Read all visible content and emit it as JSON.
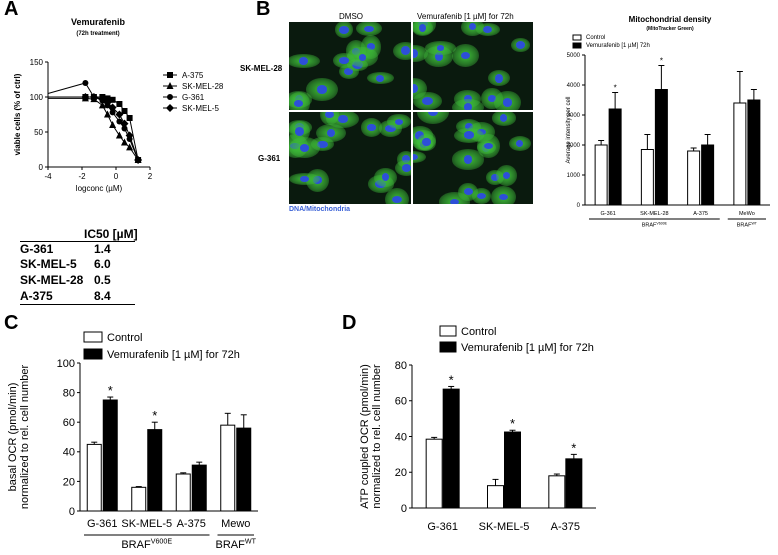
{
  "panels": {
    "a": "A",
    "b": "B",
    "c": "C",
    "d": "D"
  },
  "panel_a": {
    "ic50_header": "IC50 [µM]",
    "ic50_rows": [
      {
        "cell": "G-361",
        "value": "1.4"
      },
      {
        "cell": "SK-MEL-5",
        "value": "6.0"
      },
      {
        "cell": "SK-MEL-28",
        "value": "0.5"
      },
      {
        "cell": "A-375",
        "value": "8.4"
      }
    ]
  },
  "panel_b": {
    "micro_cols": [
      "DMSO",
      "Vemurafenib [1 µM] for 72h"
    ],
    "micro_rows": [
      "SK-MEL-28",
      "G-361"
    ],
    "micro_caption": "DNA/Mitochondria",
    "colors": {
      "nucleus": "#2d4fd8",
      "mito": "#3fbf3a"
    }
  },
  "chart_data": [
    {
      "type": "scatter",
      "title": "Vemurafenib",
      "subtitle": "(72h treatment)",
      "xlabel": "logconc (µM)",
      "ylabel": "viable cells (% of ctrl)",
      "xlim": [
        -4,
        2
      ],
      "ylim": [
        0,
        150
      ],
      "xticks": [
        -4,
        -2,
        0,
        2
      ],
      "yticks": [
        0,
        50,
        100,
        150
      ],
      "x": [
        -1.8,
        -1.3,
        -0.8,
        -0.5,
        -0.2,
        0.2,
        0.5,
        0.8,
        1.3
      ],
      "series": [
        {
          "name": "A-375",
          "marker": "square",
          "values": [
            100,
            100,
            100,
            98,
            96,
            90,
            80,
            70,
            10
          ]
        },
        {
          "name": "SK-MEL-28",
          "marker": "triangle",
          "values": [
            98,
            97,
            88,
            75,
            60,
            45,
            35,
            28,
            10
          ]
        },
        {
          "name": "G-361",
          "marker": "circle",
          "values": [
            120,
            100,
            95,
            88,
            78,
            65,
            55,
            40,
            10
          ]
        },
        {
          "name": "SK-MEL-5",
          "marker": "diamond",
          "values": [
            100,
            100,
            97,
            92,
            85,
            75,
            62,
            45,
            10
          ]
        }
      ],
      "legend": "right"
    },
    {
      "type": "bar",
      "title": "Mitochondrial density",
      "subtitle": "(MitoTracker Green)",
      "ylabel": "Average intensity per cell",
      "categories": [
        "G-361",
        "SK-MEL-28",
        "A-375",
        "MeWo"
      ],
      "groups": [
        {
          "label": "BRAF",
          "sup": "V600E",
          "span": [
            0,
            2
          ]
        },
        {
          "label": "BRAF",
          "sup": "WT",
          "span": [
            3,
            3
          ]
        }
      ],
      "ylim": [
        0,
        5000
      ],
      "yticks": [
        0,
        1000,
        2000,
        3000,
        4000,
        5000
      ],
      "series": [
        {
          "name": "Control",
          "color": "#ffffff",
          "values": [
            2000,
            1850,
            1800,
            3400
          ],
          "errors": [
            150,
            500,
            100,
            1050
          ]
        },
        {
          "name": "Vemurafenib [1 µM] 72h",
          "color": "#000000",
          "values": [
            3200,
            3850,
            2000,
            3500
          ],
          "errors": [
            550,
            800,
            350,
            350
          ]
        }
      ],
      "significance": [
        "*",
        "*",
        "",
        ""
      ],
      "legend": "top-left"
    },
    {
      "type": "bar",
      "ylabel": "basal OCR (pmol/min)\nnormalized to rel. cell number",
      "categories": [
        "G-361",
        "SK-MEL-5",
        "A-375",
        "Mewo"
      ],
      "groups": [
        {
          "label": "BRAF",
          "sup": "V600E",
          "span": [
            0,
            2
          ]
        },
        {
          "label": "BRAF",
          "sup": "WT",
          "span": [
            3,
            3
          ]
        }
      ],
      "ylim": [
        0,
        100
      ],
      "yticks": [
        0,
        20,
        40,
        60,
        80,
        100
      ],
      "series": [
        {
          "name": "Control",
          "color": "#ffffff",
          "values": [
            45,
            16,
            25,
            58
          ],
          "errors": [
            1.5,
            0.5,
            0.8,
            8
          ]
        },
        {
          "name": "Vemurafenib [1 µM] for 72h",
          "color": "#000000",
          "values": [
            75,
            55,
            31,
            56
          ],
          "errors": [
            2,
            5,
            2,
            9
          ]
        }
      ],
      "significance": [
        "*",
        "*",
        "",
        ""
      ],
      "legend": "top-left"
    },
    {
      "type": "bar",
      "ylabel": "ATP coupled OCR (pmol/min)\nnormalized to rel. cell number",
      "categories": [
        "G-361",
        "SK-MEL-5",
        "A-375"
      ],
      "ylim": [
        0,
        80
      ],
      "yticks": [
        0,
        20,
        40,
        60,
        80
      ],
      "series": [
        {
          "name": "Control",
          "color": "#ffffff",
          "values": [
            38.5,
            12.5,
            18
          ],
          "errors": [
            1,
            3.5,
            1
          ]
        },
        {
          "name": "Vemurafenib [1 µM] for 72h",
          "color": "#000000",
          "values": [
            66.5,
            42.5,
            27.5
          ],
          "errors": [
            1.5,
            1,
            2.5
          ]
        }
      ],
      "significance": [
        "*",
        "*",
        "*"
      ],
      "legend": "top-left"
    }
  ]
}
